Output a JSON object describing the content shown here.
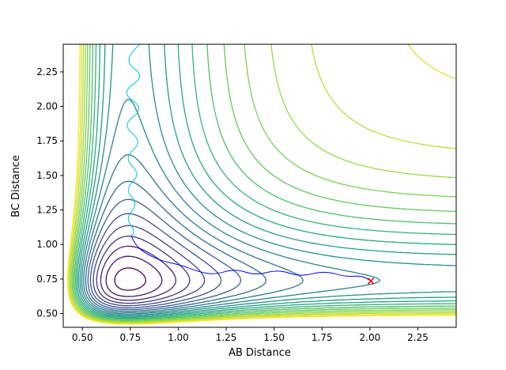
{
  "chart_data": {
    "type": "contour",
    "title": "",
    "xlabel": "AB Distance",
    "ylabel": "BC Distance",
    "xlim": [
      0.4,
      2.45
    ],
    "ylim": [
      0.4,
      2.45
    ],
    "xticks": [
      0.5,
      0.75,
      1.0,
      1.25,
      1.5,
      1.75,
      2.0,
      2.25
    ],
    "xtick_labels": [
      "0.50",
      "0.75",
      "1.00",
      "1.25",
      "1.50",
      "1.75",
      "2.00",
      "2.25"
    ],
    "yticks": [
      0.5,
      0.75,
      1.0,
      1.25,
      1.5,
      1.75,
      2.0,
      2.25
    ],
    "ytick_labels": [
      "0.50",
      "0.75",
      "1.00",
      "1.25",
      "1.50",
      "1.75",
      "2.00",
      "2.25"
    ],
    "grid": false,
    "legend": "none",
    "background": "#ffffff",
    "colormap": "viridis",
    "colormap_stops": [
      "#440154",
      "#414487",
      "#2a788e",
      "#22a884",
      "#7ad151",
      "#fde725"
    ],
    "levels": [
      0.05,
      0.15,
      0.25,
      0.35,
      0.45,
      0.55,
      0.65,
      0.75,
      0.85,
      0.95,
      1.05,
      1.15,
      1.25,
      1.35,
      1.45,
      1.55,
      1.65,
      1.75,
      1.85,
      1.95,
      2.05
    ],
    "surface": {
      "form": "sum_of_morse",
      "formula": "V(ab,bc) = (1-exp(-a*(ab-re)))^2 + (1-exp(-a*(bc-re)))^2",
      "description": "Repulsive walls at small AB/BC distances, reactant valley along AB~0.74, product valley along BC~0.74, plateau in upper-right",
      "re": 0.74,
      "a": 2.8,
      "grid_resolution": 150
    },
    "trajectories": [
      {
        "name": "entrance-channel-trajectory",
        "color": "#00c5e5",
        "points": [
          [
            0.8,
            2.45
          ],
          [
            0.705,
            2.335
          ],
          [
            0.83,
            2.22
          ],
          [
            0.7,
            2.1
          ],
          [
            0.825,
            1.985
          ],
          [
            0.705,
            1.865
          ],
          [
            0.815,
            1.745
          ],
          [
            0.715,
            1.625
          ],
          [
            0.805,
            1.51
          ],
          [
            0.72,
            1.4
          ],
          [
            0.79,
            1.295
          ],
          [
            0.725,
            1.19
          ],
          [
            0.775,
            1.1
          ],
          [
            0.755,
            1.06
          ]
        ]
      },
      {
        "name": "exit-channel-trajectory",
        "color": "#0000ff",
        "points": [
          [
            0.755,
            1.06
          ],
          [
            0.775,
            0.995
          ],
          [
            0.835,
            0.93
          ],
          [
            0.915,
            0.88
          ],
          [
            1.015,
            0.85
          ],
          [
            1.1,
            0.805
          ],
          [
            1.19,
            0.78
          ],
          [
            1.295,
            0.825
          ],
          [
            1.405,
            0.775
          ],
          [
            1.52,
            0.82
          ],
          [
            1.64,
            0.765
          ],
          [
            1.76,
            0.81
          ],
          [
            1.875,
            0.765
          ],
          [
            1.955,
            0.775
          ],
          [
            2.0,
            0.74
          ]
        ]
      }
    ],
    "end_marker": {
      "x": 2.005,
      "y": 0.735,
      "symbol": "x",
      "color": "#ff0000"
    }
  }
}
